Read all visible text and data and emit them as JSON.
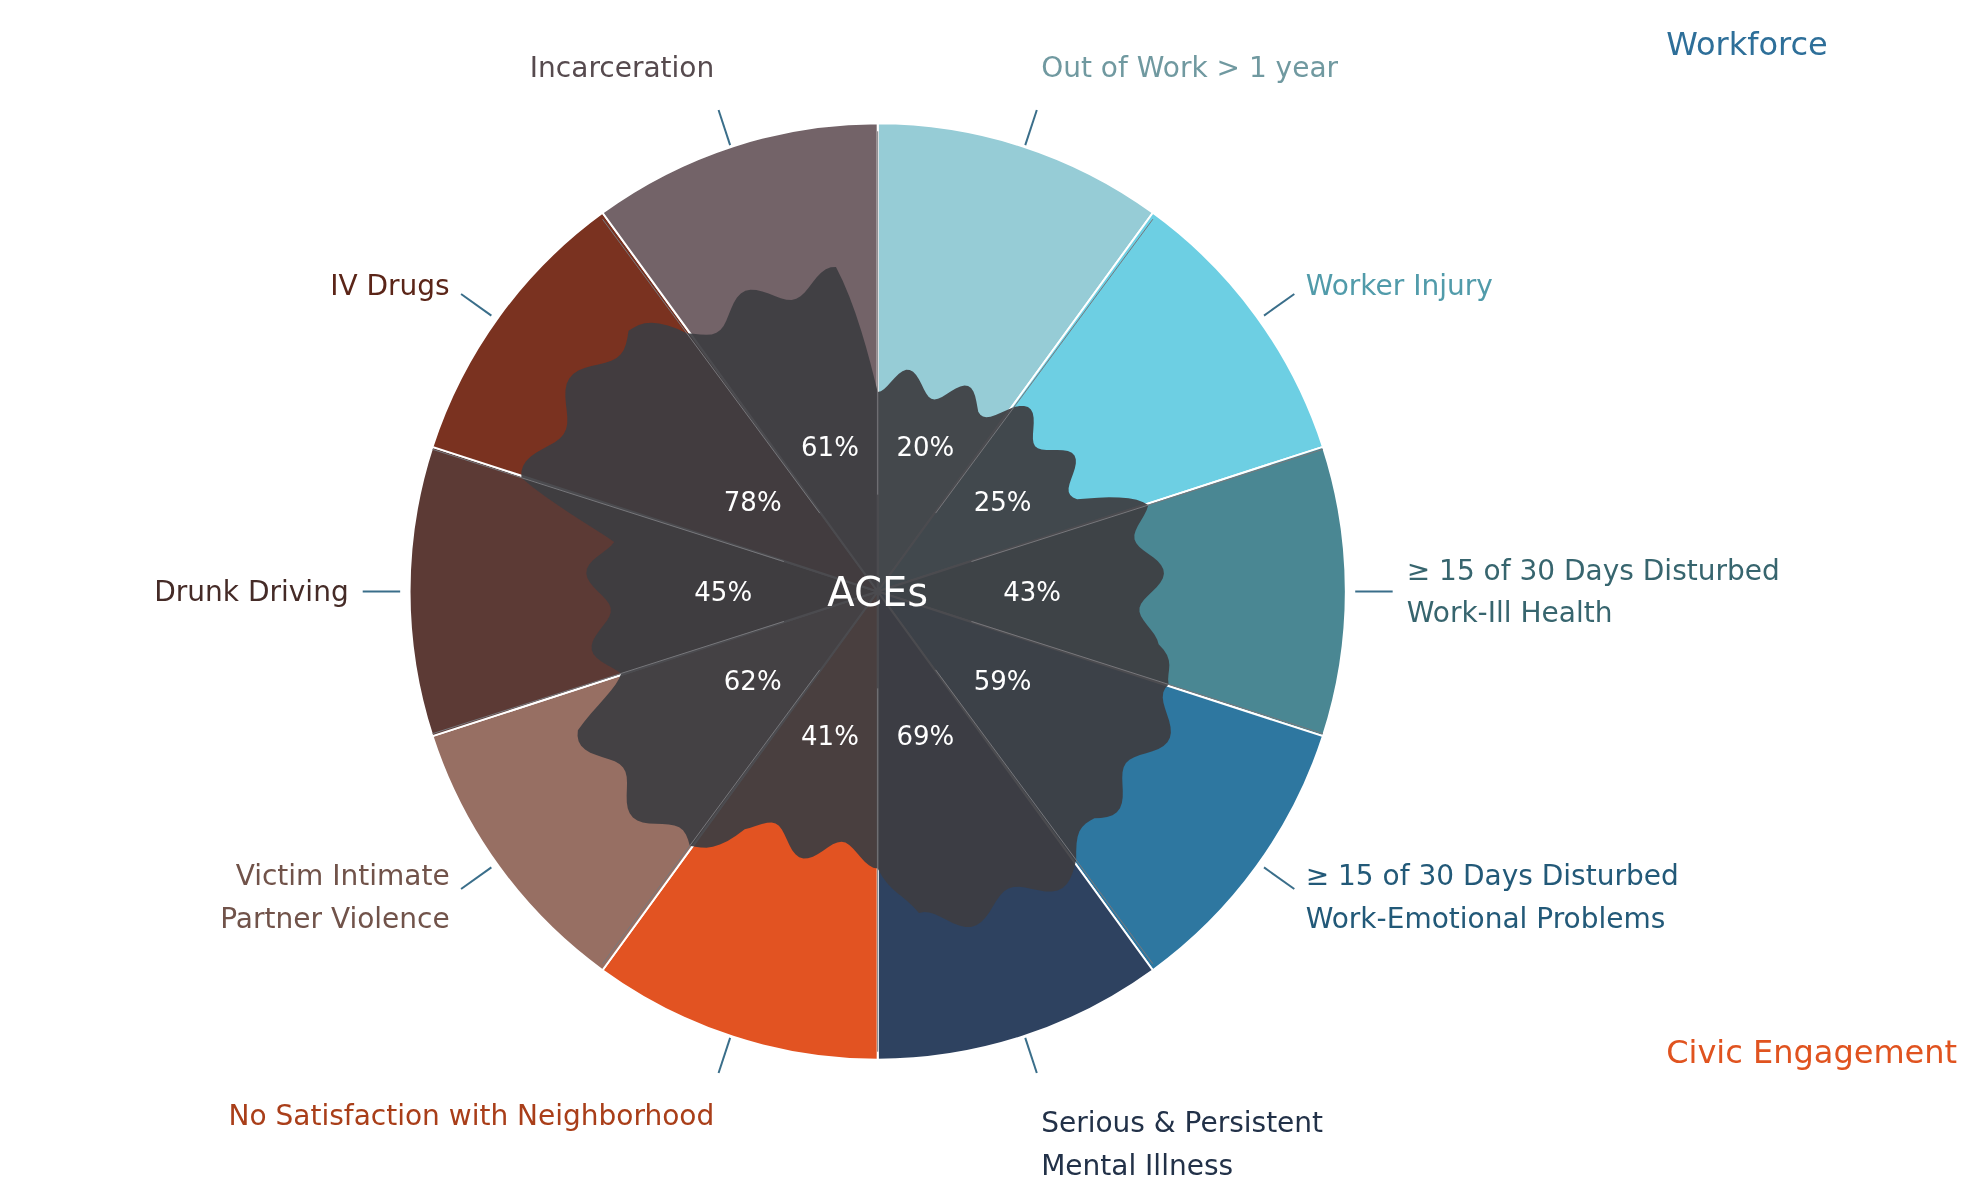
{
  "chart_data": {
    "type": "other",
    "title": "ACEs",
    "categories": [
      "Out of Work > 1 year",
      "Worker Injury",
      "≥ 15 of 30 Days Disturbed\nWork-Ill Health",
      "≥ 15 of 30 Days Disturbed\nWork-Emotional Problems",
      "Serious & Persistent\nMental Illness",
      "No Satisfaction with Neighborhood",
      "Victim Intimate\nPartner Violence",
      "Drunk Driving",
      "IV Drugs",
      "Incarceration"
    ],
    "values": [
      20,
      25,
      43,
      59,
      69,
      41,
      62,
      45,
      78,
      61
    ],
    "value_labels": [
      "20%",
      "25%",
      "43%",
      "59%",
      "69%",
      "41%",
      "62%",
      "45%",
      "78%",
      "61%"
    ],
    "colors": [
      "#96ccd6",
      "#6dcfe3",
      "#4a8793",
      "#2e77a0",
      "#2e4260",
      "#e25322",
      "#976f63",
      "#5c3a35",
      "#7a3220",
      "#736368"
    ],
    "annotations": [
      "Workforce",
      "Civic Engagement"
    ]
  }
}
